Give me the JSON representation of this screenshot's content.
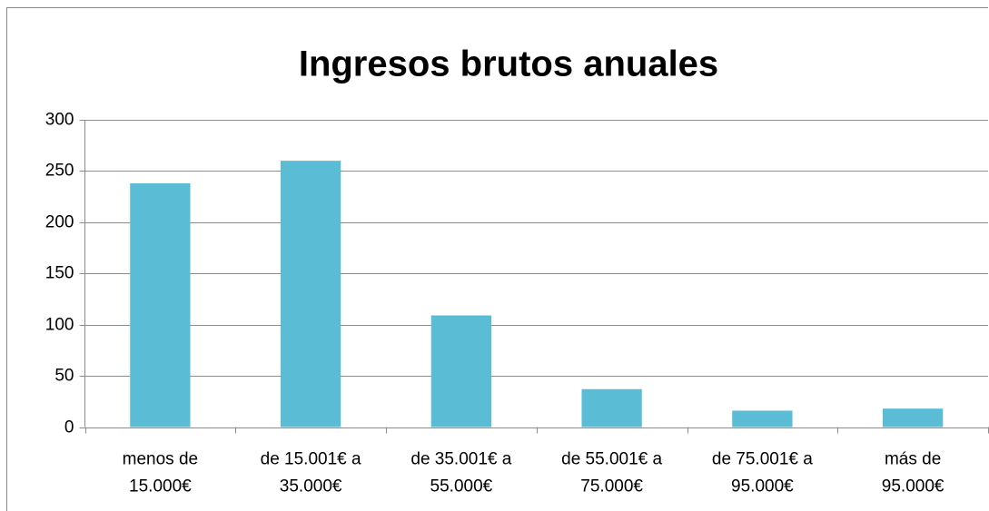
{
  "chart_data": {
    "type": "bar",
    "title": "Ingresos brutos anuales",
    "categories": [
      [
        "menos de",
        "15.000€"
      ],
      [
        "de 15.001€ a",
        "35.000€"
      ],
      [
        "de 35.001€ a",
        "55.000€"
      ],
      [
        "de 55.001€ a",
        "75.000€"
      ],
      [
        "de 75.001€ a",
        "95.000€"
      ],
      [
        "más de",
        "95.000€"
      ]
    ],
    "values": [
      238,
      260,
      109,
      37,
      16,
      18
    ],
    "color": "#5bbcd6",
    "ylim": [
      0,
      300
    ],
    "yticks": [
      0,
      50,
      100,
      150,
      200,
      250,
      300
    ],
    "grid": true
  }
}
